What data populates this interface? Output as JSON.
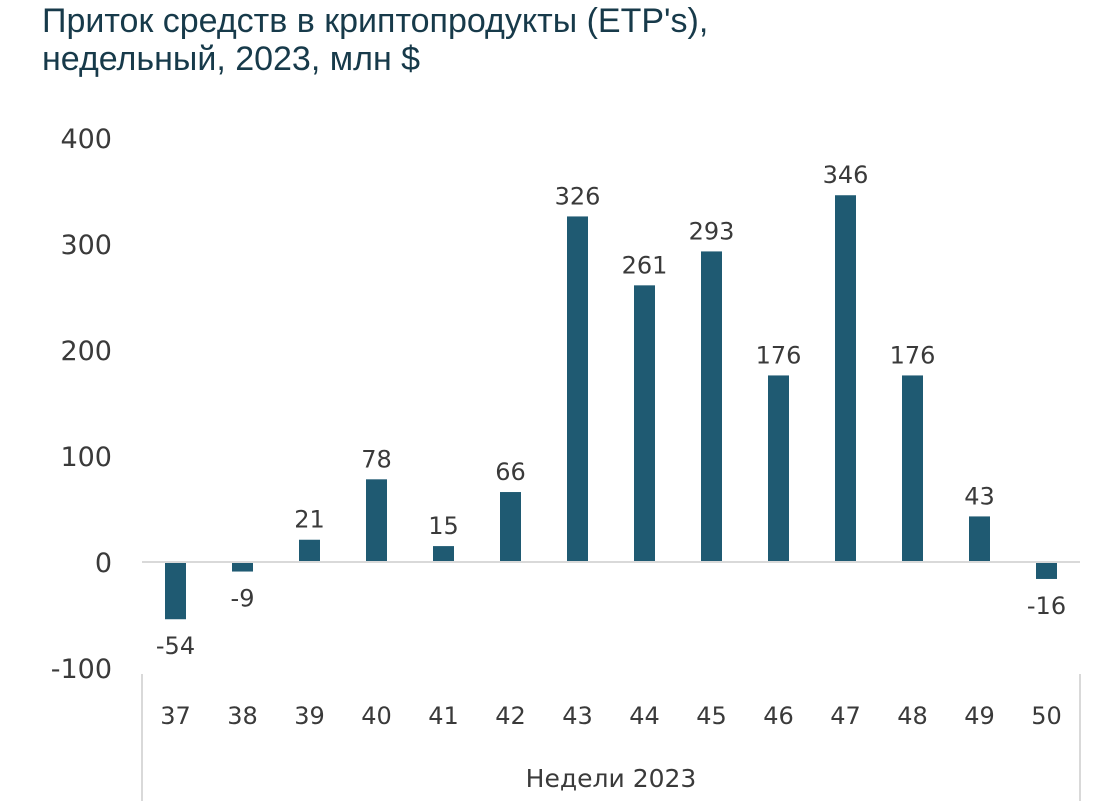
{
  "title": {
    "line1": "Приток средств в криптопродукты (ETP's),",
    "line2": "недельный, 2023, млн $"
  },
  "colors": {
    "bar": "#1f5a72",
    "axis": "#d9d9d9",
    "title": "#173a4a",
    "text": "#3a3a3a"
  },
  "chart_data": {
    "type": "bar",
    "title": "Приток средств в криптопродукты (ETP's), недельный, 2023, млн $",
    "xlabel": "Недели 2023",
    "ylabel": "",
    "categories": [
      "37",
      "38",
      "39",
      "40",
      "41",
      "42",
      "43",
      "44",
      "45",
      "46",
      "47",
      "48",
      "49",
      "50"
    ],
    "values": [
      -54,
      -9,
      21,
      78,
      15,
      66,
      326,
      261,
      293,
      176,
      346,
      176,
      43,
      -16
    ],
    "data_labels": [
      "-54",
      "-9",
      "21",
      "78",
      "15",
      "66",
      "326",
      "261",
      "293",
      "176",
      "346",
      "176",
      "43",
      "-16"
    ],
    "ylim": [
      -100,
      400
    ],
    "yticks": [
      -100,
      0,
      100,
      200,
      300,
      400
    ],
    "ytick_labels": [
      "-100",
      "0",
      "100",
      "200",
      "300",
      "400"
    ],
    "grid": false,
    "legend": "none"
  }
}
